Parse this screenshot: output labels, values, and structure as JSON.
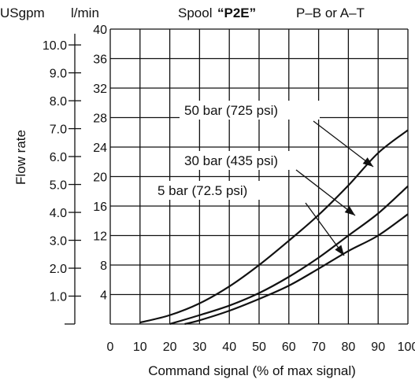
{
  "chart_data": {
    "type": "line",
    "header": {
      "unit_left": "USgpm",
      "unit_right": "l/min",
      "spool_prefix": "Spool",
      "spool_name": "“P2E”",
      "ports": "P–B or A–T"
    },
    "xlabel": "Command signal (% of max signal)",
    "ylabel": "Flow rate",
    "xlim": [
      10,
      100
    ],
    "ylim_lpm": [
      0,
      40
    ],
    "ylim_usgpm": [
      0,
      10.57
    ],
    "x_ticks": [
      0,
      10,
      20,
      30,
      40,
      50,
      60,
      70,
      80,
      90,
      100
    ],
    "y_ticks_lpm": [
      4,
      8,
      12,
      16,
      20,
      24,
      28,
      32,
      36,
      40
    ],
    "y_ticks_usgpm": [
      "1.0",
      "2.0",
      "3.0",
      "4.0",
      "5.0",
      "6.0",
      "7.0",
      "8.0",
      "9.0",
      "10.0"
    ],
    "grid": true,
    "series": [
      {
        "name": "50 bar (725 psi)",
        "x": [
          10,
          20,
          30,
          40,
          50,
          60,
          70,
          80,
          90,
          100
        ],
        "y": [
          0.2,
          1.2,
          2.8,
          5.1,
          8.0,
          11.3,
          14.8,
          18.8,
          23.2,
          26.3
        ]
      },
      {
        "name": "30 bar (435 psi)",
        "x": [
          20,
          30,
          40,
          50,
          60,
          70,
          80,
          90,
          100
        ],
        "y": [
          0.0,
          1.2,
          2.5,
          4.2,
          6.4,
          9.0,
          12.0,
          15.0,
          18.7
        ]
      },
      {
        "name": "5 bar (72.5 psi)",
        "x": [
          25,
          30,
          40,
          50,
          60,
          70,
          80,
          90,
          100
        ],
        "y": [
          0.0,
          0.5,
          1.8,
          3.4,
          5.2,
          7.5,
          9.9,
          12.0,
          14.9
        ]
      }
    ]
  }
}
